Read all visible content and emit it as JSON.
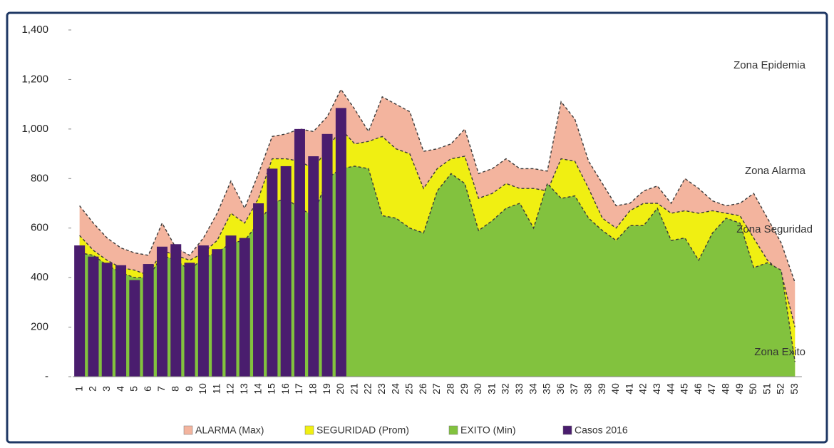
{
  "chart_data": {
    "type": "endemic",
    "categories": [
      "1",
      "2",
      "3",
      "4",
      "5",
      "6",
      "7",
      "8",
      "9",
      "10",
      "11",
      "12",
      "13",
      "14",
      "15",
      "16",
      "17",
      "18",
      "19",
      "20",
      "21",
      "22",
      "23",
      "24",
      "25",
      "26",
      "27",
      "28",
      "29",
      "30",
      "31",
      "32",
      "33",
      "34",
      "35",
      "36",
      "37",
      "38",
      "39",
      "40",
      "41",
      "42",
      "43",
      "44",
      "45",
      "46",
      "47",
      "48",
      "49",
      "50",
      "51",
      "52",
      "53"
    ],
    "series": [
      {
        "name": "ALARMA (Max)",
        "color": "#f3b49e",
        "kind": "area",
        "values": [
          690,
          620,
          560,
          520,
          500,
          490,
          620,
          520,
          490,
          560,
          660,
          790,
          680,
          820,
          970,
          980,
          1000,
          990,
          1050,
          1160,
          1080,
          990,
          1130,
          1100,
          1070,
          910,
          920,
          940,
          1000,
          820,
          840,
          880,
          840,
          840,
          830,
          1110,
          1040,
          870,
          780,
          690,
          700,
          750,
          770,
          700,
          800,
          760,
          710,
          690,
          700,
          740,
          640,
          540,
          380
        ]
      },
      {
        "name": "SEGURIDAD (Prom)",
        "color": "#f0ef12",
        "kind": "area",
        "values": [
          570,
          510,
          470,
          440,
          430,
          410,
          510,
          490,
          470,
          500,
          550,
          660,
          620,
          720,
          880,
          880,
          870,
          840,
          920,
          1000,
          940,
          950,
          970,
          920,
          900,
          760,
          840,
          880,
          890,
          720,
          740,
          780,
          760,
          760,
          750,
          880,
          870,
          760,
          640,
          600,
          670,
          700,
          700,
          660,
          670,
          660,
          670,
          660,
          650,
          560,
          470,
          420,
          200
        ]
      },
      {
        "name": "EXITO (Min)",
        "color": "#82c23e",
        "kind": "area",
        "values": [
          500,
          490,
          450,
          420,
          400,
          400,
          490,
          470,
          430,
          480,
          500,
          540,
          550,
          620,
          700,
          720,
          680,
          650,
          800,
          840,
          850,
          840,
          650,
          640,
          600,
          580,
          750,
          820,
          780,
          590,
          630,
          680,
          700,
          600,
          780,
          720,
          730,
          640,
          590,
          550,
          610,
          610,
          680,
          550,
          560,
          470,
          580,
          640,
          620,
          440,
          460,
          430,
          60
        ]
      },
      {
        "name": "Casos 2016",
        "color": "#4a1d6e",
        "kind": "bar",
        "values": [
          530,
          485,
          460,
          450,
          390,
          455,
          525,
          535,
          460,
          530,
          515,
          570,
          560,
          700,
          840,
          850,
          1000,
          890,
          980,
          1085,
          null,
          null,
          null,
          null,
          null,
          null,
          null,
          null,
          null,
          null,
          null,
          null,
          null,
          null,
          null,
          null,
          null,
          null,
          null,
          null,
          null,
          null,
          null,
          null,
          null,
          null,
          null,
          null,
          null,
          null,
          null,
          null,
          null
        ]
      }
    ],
    "ylim": [
      0,
      1400
    ],
    "yticks": [
      {
        "value": 0,
        "label": "-"
      },
      200,
      400,
      600,
      800,
      {
        "value": 1000,
        "label": "1,000"
      },
      {
        "value": 1200,
        "label": "1,200"
      },
      {
        "value": 1400,
        "label": "1,400"
      }
    ],
    "annotations": [
      "Zona Epidemia",
      "Zona Alarma",
      "Zona Seguridad",
      "Zona Exito"
    ]
  }
}
